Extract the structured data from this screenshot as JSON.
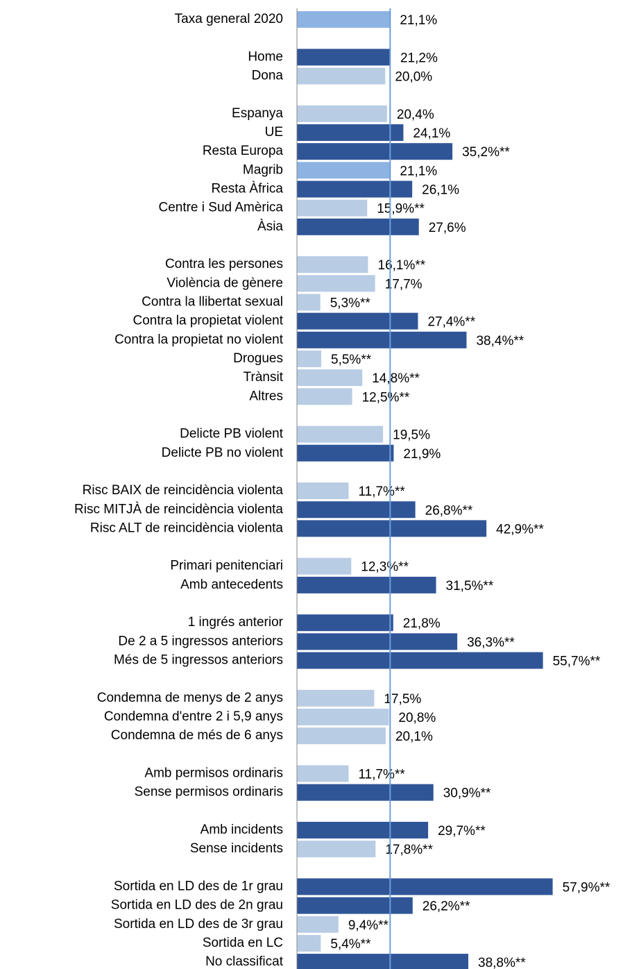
{
  "chart_data": {
    "type": "bar",
    "orientation": "horizontal",
    "categories": [
      "Taxa general 2020",
      null,
      "Home",
      "Dona",
      null,
      "Espanya",
      "UE",
      "Resta Europa",
      "Magrib",
      "Resta Àfrica",
      "Centre i Sud Amèrica",
      "Àsia",
      null,
      "Contra les persones",
      "Violència de gènere",
      "Contra la llibertat sexual",
      "Contra la propietat violent",
      "Contra la propietat no violent",
      "Drogues",
      "Trànsit",
      "Altres",
      null,
      "Delicte PB violent",
      "Delicte PB no violent",
      null,
      "Risc BAIX de reincidència violenta",
      "Risc MITJÀ de reincidència violenta",
      "Risc ALT de reincidència violenta",
      null,
      "Primari penitenciari",
      "Amb antecedents",
      null,
      "1 ingrés anterior",
      "De 2 a 5 ingressos anteriors",
      "Més de 5 ingressos anteriors",
      null,
      "Condemna de menys de 2 anys",
      "Condemna d'entre 2 i 5,9 anys",
      "Condemna de més de 6 anys",
      null,
      "Amb permisos ordinaris",
      "Sense permisos ordinaris",
      null,
      "Amb incidents",
      "Sense incidents",
      null,
      "Sortida en LD des de 1r grau",
      "Sortida en LD des de 2n grau",
      "Sortida en LD des de 3r grau",
      "Sortida en LC",
      "No classificat"
    ],
    "values": [
      21.1,
      null,
      21.2,
      20.0,
      null,
      20.4,
      24.1,
      35.2,
      21.1,
      26.1,
      15.9,
      27.6,
      null,
      16.1,
      17.7,
      5.3,
      27.4,
      38.4,
      5.5,
      14.8,
      12.5,
      null,
      19.5,
      21.9,
      null,
      11.7,
      26.8,
      42.9,
      null,
      12.3,
      31.5,
      null,
      21.8,
      36.3,
      55.7,
      null,
      17.5,
      20.8,
      20.1,
      null,
      11.7,
      30.9,
      null,
      29.7,
      17.8,
      null,
      57.9,
      26.2,
      9.4,
      5.4,
      38.8
    ],
    "value_labels": [
      "21,1%",
      null,
      "21,2%",
      "20,0%",
      null,
      "20,4%",
      "24,1%",
      "35,2%**",
      "21,1%",
      "26,1%",
      "15,9%**",
      "27,6%",
      null,
      "16,1%**",
      "17,7%",
      "5,3%**",
      "27,4%**",
      "38,4%**",
      "5,5%**",
      "14,8%**",
      "12,5%**",
      null,
      "19,5%",
      "21,9%",
      null,
      "11,7%**",
      "26,8%**",
      "42,9%**",
      null,
      "12,3%**",
      "31,5%**",
      null,
      "21,8%",
      "36,3%**",
      "55,7%**",
      null,
      "17,5%",
      "20,8%",
      "20,1%",
      null,
      "11,7%**",
      "30,9%**",
      null,
      "29,7%**",
      "17,8%**",
      null,
      "57,9%**",
      "26,2%**",
      "9,4%**",
      "5,4%**",
      "38,8%**"
    ],
    "colors": [
      "#8db3e2",
      null,
      "#2f5597",
      "#b8cce4",
      null,
      "#b8cce4",
      "#2f5597",
      "#2f5597",
      "#8db3e2",
      "#2f5597",
      "#b8cce4",
      "#2f5597",
      null,
      "#b8cce4",
      "#b8cce4",
      "#b8cce4",
      "#2f5597",
      "#2f5597",
      "#b8cce4",
      "#b8cce4",
      "#b8cce4",
      null,
      "#b8cce4",
      "#2f5597",
      null,
      "#b8cce4",
      "#2f5597",
      "#2f5597",
      null,
      "#b8cce4",
      "#2f5597",
      null,
      "#2f5597",
      "#2f5597",
      "#2f5597",
      null,
      "#b8cce4",
      "#b8cce4",
      "#b8cce4",
      null,
      "#b8cce4",
      "#2f5597",
      null,
      "#2f5597",
      "#b8cce4",
      null,
      "#2f5597",
      "#2f5597",
      "#b8cce4",
      "#b8cce4",
      "#2f5597"
    ],
    "xlim": [
      0,
      60
    ],
    "reference_line": 21.1,
    "reference_color": "#6d9eda"
  }
}
